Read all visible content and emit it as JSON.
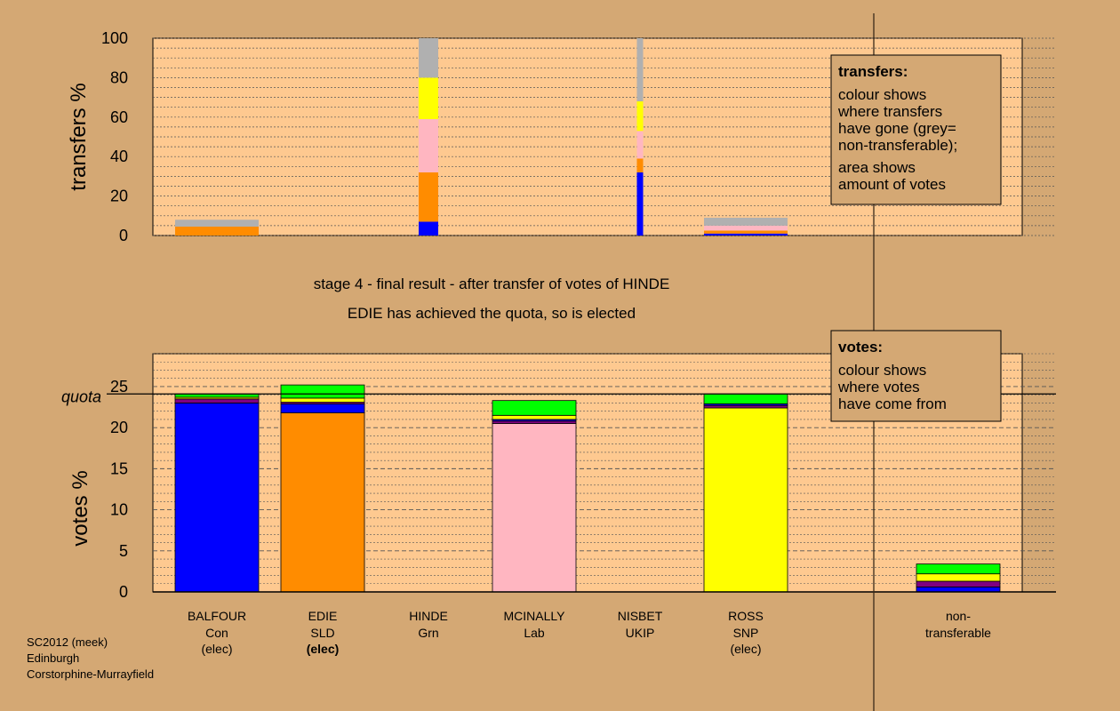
{
  "colors": {
    "background": "#d4a874",
    "plot_background": "#fec990",
    "Con": "#0000ff",
    "SLD": "#ff8c00",
    "Grn": "#00ff00",
    "Lab": "#ffb6c1",
    "UKIP": "#800080",
    "SNP": "#ffff00",
    "non_transferable": "#b0b0b0"
  },
  "caption": {
    "line1": "stage 4 - final result - after transfer of votes of HINDE",
    "line2": "EDIE has achieved the quota, so is elected"
  },
  "footer": [
    "SC2012 (meek)",
    "Edinburgh",
    "Corstorphine-Murrayfield"
  ],
  "chart_data": [
    {
      "type": "bar",
      "stacked": true,
      "ylabel": "transfers %",
      "ylim": [
        0,
        100
      ],
      "yticks": [
        0,
        20,
        40,
        60,
        80,
        100
      ],
      "legend_box": {
        "title": "transfers:",
        "lines1": [
          "colour shows",
          "where transfers",
          "have gone (grey=",
          "non-transferable);"
        ],
        "lines2": [
          "area shows",
          "amount of votes"
        ]
      },
      "bars": [
        {
          "category": "BALFOUR",
          "width": "wide",
          "segments": [
            {
              "party": "SLD",
              "value": 4.5
            },
            {
              "party": "non_transferable",
              "value": 3.5
            }
          ]
        },
        {
          "category": "HINDE",
          "width": "narrow",
          "segments": [
            {
              "party": "Con",
              "value": 7
            },
            {
              "party": "SLD",
              "value": 25
            },
            {
              "party": "Lab",
              "value": 27
            },
            {
              "party": "SNP",
              "value": 21
            },
            {
              "party": "non_transferable",
              "value": 20
            }
          ]
        },
        {
          "category": "NISBET",
          "width": "thin",
          "segments": [
            {
              "party": "Con",
              "value": 32
            },
            {
              "party": "SLD",
              "value": 7
            },
            {
              "party": "Lab",
              "value": 14
            },
            {
              "party": "SNP",
              "value": 15
            },
            {
              "party": "non_transferable",
              "value": 32
            }
          ]
        },
        {
          "category": "ROSS",
          "width": "wide",
          "segments": [
            {
              "party": "Con",
              "value": 1
            },
            {
              "party": "SLD",
              "value": 1.5
            },
            {
              "party": "Lab",
              "value": 2.5
            },
            {
              "party": "non_transferable",
              "value": 4
            }
          ]
        }
      ]
    },
    {
      "type": "bar",
      "stacked": true,
      "ylabel": "votes %",
      "ylim": [
        0,
        29
      ],
      "yticks": [
        0,
        5,
        10,
        15,
        20,
        25
      ],
      "quota": 24.1,
      "quota_label": "quota",
      "legend_box": {
        "title": "votes:",
        "lines1": [
          "colour shows",
          "where votes",
          "have come from"
        ]
      },
      "candidates": [
        {
          "name": "BALFOUR",
          "party": "Con",
          "status": "(elec)",
          "status_bold": false
        },
        {
          "name": "EDIE",
          "party": "SLD",
          "status": "(elec)",
          "status_bold": true
        },
        {
          "name": "HINDE",
          "party": "Grn",
          "status": "",
          "status_bold": false
        },
        {
          "name": "MCINALLY",
          "party": "Lab",
          "status": "",
          "status_bold": false
        },
        {
          "name": "NISBET",
          "party": "UKIP",
          "status": "",
          "status_bold": false
        },
        {
          "name": "ROSS",
          "party": "SNP",
          "status": "(elec)",
          "status_bold": false
        }
      ],
      "non_transferable_label": [
        "non-",
        "transferable"
      ],
      "bars": [
        {
          "category": "BALFOUR",
          "segments": [
            {
              "party": "Con",
              "value": 23.0
            },
            {
              "party": "UKIP",
              "value": 0.5
            },
            {
              "party": "SNP",
              "value": 0.2
            },
            {
              "party": "Grn",
              "value": 0.4
            }
          ]
        },
        {
          "category": "EDIE",
          "segments": [
            {
              "party": "SLD",
              "value": 21.8
            },
            {
              "party": "Con",
              "value": 1.1
            },
            {
              "party": "UKIP",
              "value": 0.2
            },
            {
              "party": "SNP",
              "value": 0.5
            },
            {
              "party": "Grn",
              "value": 1.6
            }
          ]
        },
        {
          "category": "MCINALLY",
          "segments": [
            {
              "party": "Lab",
              "value": 20.5
            },
            {
              "party": "UKIP",
              "value": 0.3
            },
            {
              "party": "Con",
              "value": 0.2
            },
            {
              "party": "SNP",
              "value": 0.5
            },
            {
              "party": "Grn",
              "value": 1.8
            }
          ]
        },
        {
          "category": "ROSS",
          "segments": [
            {
              "party": "SNP",
              "value": 22.4
            },
            {
              "party": "UKIP",
              "value": 0.3
            },
            {
              "party": "Con",
              "value": 0.2
            },
            {
              "party": "Grn",
              "value": 1.2
            }
          ]
        },
        {
          "category": "non_transferable",
          "segments": [
            {
              "party": "Con",
              "value": 0.6
            },
            {
              "party": "UKIP",
              "value": 0.7
            },
            {
              "party": "SNP",
              "value": 0.9
            },
            {
              "party": "Grn",
              "value": 1.2
            }
          ]
        }
      ]
    }
  ]
}
